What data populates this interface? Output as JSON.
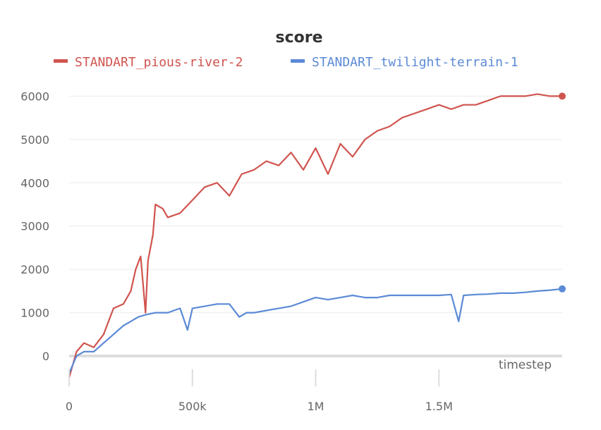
{
  "chart_data": {
    "type": "line",
    "title": "score",
    "xlabel": "timestep",
    "ylabel": "",
    "xlim": [
      0,
      2000000
    ],
    "ylim": [
      -700,
      6300
    ],
    "x_ticks": [
      {
        "value": 0,
        "label": "0"
      },
      {
        "value": 500000,
        "label": "500k"
      },
      {
        "value": 1000000,
        "label": "1M"
      },
      {
        "value": 1500000,
        "label": "1.5M"
      }
    ],
    "y_ticks": [
      {
        "value": 0,
        "label": "0"
      },
      {
        "value": 1000,
        "label": "1000"
      },
      {
        "value": 2000,
        "label": "2000"
      },
      {
        "value": 3000,
        "label": "3000"
      },
      {
        "value": 4000,
        "label": "4000"
      },
      {
        "value": 5000,
        "label": "5000"
      },
      {
        "value": 6000,
        "label": "6000"
      }
    ],
    "grid": "horizontal",
    "legend_position": "top",
    "series": [
      {
        "name": "STANDART_pious-river-2",
        "color": "#d0544f",
        "x": [
          0,
          30000,
          60000,
          100000,
          140000,
          180000,
          220000,
          250000,
          270000,
          290000,
          310000,
          320000,
          340000,
          350000,
          380000,
          400000,
          450000,
          500000,
          550000,
          600000,
          650000,
          700000,
          750000,
          800000,
          850000,
          900000,
          950000,
          1000000,
          1050000,
          1100000,
          1150000,
          1200000,
          1250000,
          1300000,
          1350000,
          1400000,
          1450000,
          1500000,
          1550000,
          1600000,
          1650000,
          1700000,
          1750000,
          1800000,
          1850000,
          1900000,
          1950000,
          2000000
        ],
        "y": [
          -500,
          100,
          300,
          200,
          500,
          1100,
          1200,
          1500,
          2000,
          2300,
          1000,
          2200,
          2800,
          3500,
          3400,
          3200,
          3300,
          3600,
          3900,
          4000,
          3700,
          4200,
          4300,
          4500,
          4400,
          4700,
          4300,
          4800,
          4200,
          4900,
          4600,
          5000,
          5200,
          5300,
          5500,
          5600,
          5700,
          5800,
          5700,
          5800,
          5800,
          5900,
          6000,
          6000,
          6000,
          6050,
          6000,
          6000
        ]
      },
      {
        "name": "STANDART_twilight-terrain-1",
        "color": "#5b8ad6",
        "x": [
          0,
          30000,
          60000,
          100000,
          140000,
          180000,
          220000,
          250000,
          280000,
          310000,
          350000,
          400000,
          450000,
          480000,
          500000,
          550000,
          600000,
          650000,
          690000,
          720000,
          750000,
          800000,
          850000,
          900000,
          950000,
          1000000,
          1050000,
          1100000,
          1150000,
          1200000,
          1250000,
          1300000,
          1350000,
          1400000,
          1450000,
          1500000,
          1550000,
          1580000,
          1600000,
          1650000,
          1700000,
          1750000,
          1800000,
          1850000,
          1900000,
          1950000,
          2000000
        ],
        "y": [
          -400,
          0,
          100,
          100,
          300,
          500,
          700,
          800,
          900,
          950,
          1000,
          1000,
          1100,
          600,
          1100,
          1150,
          1200,
          1200,
          900,
          1000,
          1000,
          1050,
          1100,
          1150,
          1250,
          1350,
          1300,
          1350,
          1400,
          1350,
          1350,
          1400,
          1400,
          1400,
          1400,
          1400,
          1420,
          800,
          1400,
          1420,
          1430,
          1450,
          1450,
          1470,
          1500,
          1520,
          1550
        ]
      }
    ]
  }
}
